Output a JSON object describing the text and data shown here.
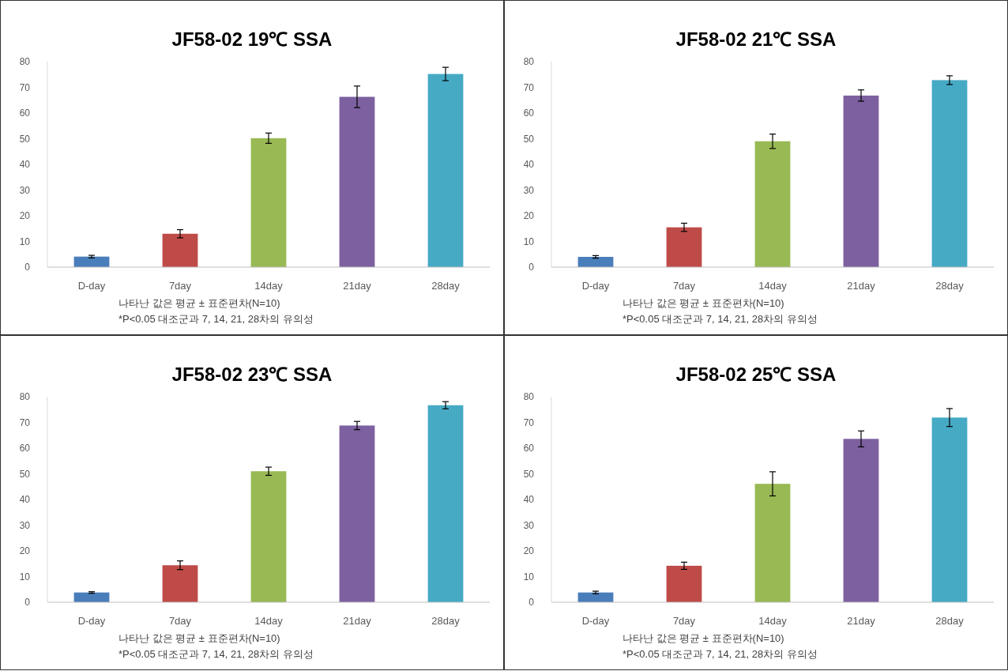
{
  "chart_data": [
    {
      "type": "bar",
      "title": "JF58-02 19℃ SSA",
      "categories": [
        "D-day",
        "7day",
        "14day",
        "21day",
        "28day"
      ],
      "colors": [
        "#4a7ebb",
        "#be4b48",
        "#98b954",
        "#7d60a0",
        "#46aac5"
      ],
      "values": [
        4.1,
        13,
        50.2,
        66.3,
        75.2
      ],
      "errors": [
        0.5,
        1.6,
        2,
        4.2,
        2.6
      ],
      "ylim": [
        0,
        80
      ],
      "yticks": [
        0,
        10,
        20,
        30,
        40,
        50,
        60,
        70,
        80
      ],
      "annotations": [
        "나타난 값은 평균 ± 표준편차(N=10)",
        "*P<0.05 대조군과 7, 14, 21, 28차의 유의성"
      ]
    },
    {
      "type": "bar",
      "title": "JF58-02 21℃ SSA",
      "categories": [
        "D-day",
        "7day",
        "14day",
        "21day",
        "28day"
      ],
      "colors": [
        "#4a7ebb",
        "#be4b48",
        "#98b954",
        "#7d60a0",
        "#46aac5"
      ],
      "values": [
        4,
        15.5,
        49,
        66.8,
        72.8
      ],
      "errors": [
        0.5,
        1.6,
        2.8,
        2.2,
        1.7
      ],
      "ylim": [
        0,
        80
      ],
      "yticks": [
        0,
        10,
        20,
        30,
        40,
        50,
        60,
        70,
        80
      ],
      "annotations": [
        "나타난 값은 평균 ± 표준편차(N=10)",
        "*P<0.05 대조군과 7, 14, 21, 28차의 유의성"
      ]
    },
    {
      "type": "bar",
      "title": "JF58-02 23℃ SSA",
      "categories": [
        "D-day",
        "7day",
        "14day",
        "21day",
        "28day"
      ],
      "colors": [
        "#4a7ebb",
        "#be4b48",
        "#98b954",
        "#7d60a0",
        "#46aac5"
      ],
      "values": [
        3.8,
        14.4,
        51,
        68.8,
        76.7
      ],
      "errors": [
        0.3,
        1.7,
        1.6,
        1.6,
        1.4
      ],
      "ylim": [
        0,
        80
      ],
      "yticks": [
        0,
        10,
        20,
        30,
        40,
        50,
        60,
        70,
        80
      ],
      "annotations": [
        "나타난 값은 평균 ± 표준편차(N=10)",
        "*P<0.05 대조군과 7, 14, 21, 28차의 유의성"
      ]
    },
    {
      "type": "bar",
      "title": "JF58-02 25℃ SSA",
      "categories": [
        "D-day",
        "7day",
        "14day",
        "21day",
        "28day"
      ],
      "colors": [
        "#4a7ebb",
        "#be4b48",
        "#98b954",
        "#7d60a0",
        "#46aac5"
      ],
      "values": [
        3.8,
        14.2,
        46.1,
        63.6,
        71.9
      ],
      "errors": [
        0.5,
        1.4,
        4.7,
        3.1,
        3.5
      ],
      "ylim": [
        0,
        80
      ],
      "yticks": [
        0,
        10,
        20,
        30,
        40,
        50,
        60,
        70,
        80
      ],
      "annotations": [
        "나타난 값은 평균 ± 표준편차(N=10)",
        "*P<0.05 대조군과 7, 14, 21, 28차의 유의성"
      ]
    }
  ]
}
